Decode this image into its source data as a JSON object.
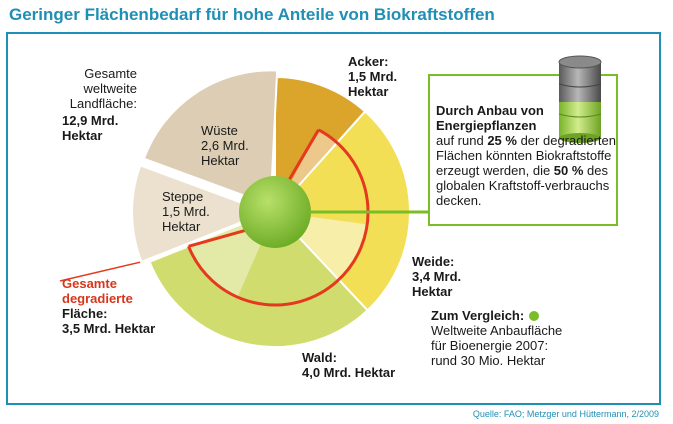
{
  "title": "Geringer Flächenbedarf für hohe Anteile von Biokraftstoffen",
  "source": "Quelle: FAO; Metzger und Hüttermann, 2/2009",
  "labels": {
    "total_1": "Gesamte",
    "total_2": "weltweite",
    "total_3": "Landfläche:",
    "total_4": "12,9 Mrd.",
    "total_5": "Hektar",
    "acker_1": "Acker:",
    "acker_2": "1,5 Mrd.",
    "acker_3": "Hektar",
    "wueste_1": "Wüste",
    "wueste_2": "2,6 Mrd.",
    "wueste_3": "Hektar",
    "steppe_1": "Steppe",
    "steppe_2": "1,5 Mrd.",
    "steppe_3": "Hektar",
    "degr_1": "Gesamte",
    "degr_2": "degradierte",
    "degr_3": "Fläche:",
    "degr_4": "3,5 Mrd. Hektar",
    "weide_1": "Weide:",
    "weide_2": "3,4 Mrd.",
    "weide_3": "Hektar",
    "wald_1": "Wald:",
    "wald_2": "4,0 Mrd. Hektar",
    "vgl_title": "Zum Vergleich:",
    "vgl_1": "Weltweite Anbaufläche",
    "vgl_2": "für Bioenergie 2007:",
    "vgl_3": "rund 30 Mio. Hektar"
  },
  "info": {
    "head_1": "Durch Anbau von",
    "head_2": "Energiepflanzen",
    "pre": "auf rund ",
    "pct1": "25 %",
    "mid": " der degradierten Flächen könnten Biokraftstoffe erzeugt werden, die ",
    "pct2": "50 %",
    "post": " des globalen Kraftstoff-verbrauchs decken."
  },
  "colors": {
    "brand": "#1f8fb5",
    "acker": "#dba42a",
    "acker_inner": "#ecc98a",
    "weide": "#f2df55",
    "weide_inner": "#f7eeaa",
    "wald": "#d1dc6f",
    "wald_inner": "#e3e9a7",
    "steppe": "#ebe1ce",
    "wueste": "#dccdb4",
    "degraded_line": "#e5391f",
    "bioenergy": "#6aaa23",
    "info_border": "#7bbd26"
  },
  "chart_data": {
    "type": "pie",
    "unit": "Mrd. Hektar",
    "total": 12.9,
    "slices": [
      {
        "label": "Acker",
        "value": 1.5,
        "degraded": 0.5
      },
      {
        "label": "Weide",
        "value": 3.4,
        "degraded": 1.4
      },
      {
        "label": "Wald",
        "value": 4.0,
        "degraded": 1.6
      },
      {
        "label": "Steppe",
        "value": 1.5,
        "degraded": 0
      },
      {
        "label": "Wüste",
        "value": 2.6,
        "degraded": 0
      }
    ],
    "total_degraded": 3.5,
    "bioenergy_2007": 0.03
  }
}
